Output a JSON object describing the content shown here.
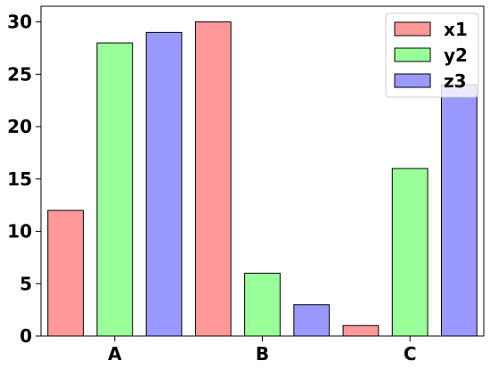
{
  "chart_data": {
    "type": "bar",
    "title": "",
    "xlabel": "",
    "ylabel": "",
    "categories": [
      "A",
      "B",
      "C"
    ],
    "series": [
      {
        "name": "x1",
        "color": "#ff9999",
        "values": [
          12,
          30,
          1
        ]
      },
      {
        "name": "y2",
        "color": "#99ff99",
        "values": [
          28,
          6,
          16
        ]
      },
      {
        "name": "z3",
        "color": "#9999ff",
        "values": [
          29,
          3,
          24
        ]
      }
    ],
    "ylim": [
      0,
      31.5
    ],
    "yticks": [
      0,
      5,
      10,
      15,
      20,
      25,
      30
    ],
    "grid": false,
    "legend_position": "top-right",
    "bar_edge_color": "#000000"
  }
}
